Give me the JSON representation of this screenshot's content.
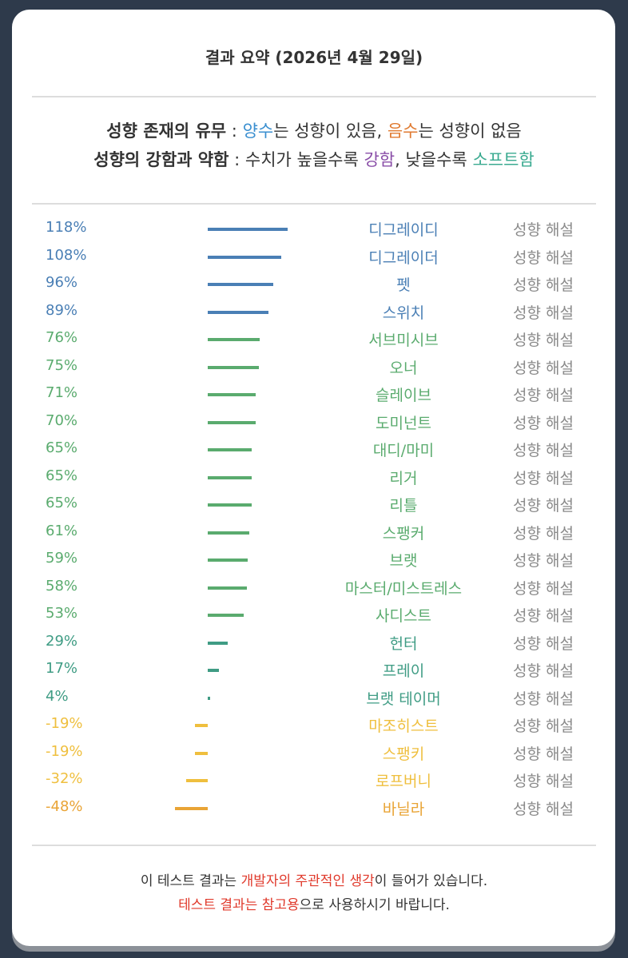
{
  "header": {
    "title": "결과 요약 (2026년 4월 29일)"
  },
  "legend": {
    "lines": [
      [
        {
          "text": "성향 존재의 유무",
          "bold": true
        },
        {
          "text": " : "
        },
        {
          "text": "양수",
          "color": "#3a8fd0"
        },
        {
          "text": "는 성향이 있음, "
        },
        {
          "text": "음수",
          "color": "#e07a30"
        },
        {
          "text": "는 성향이 없음"
        }
      ],
      [
        {
          "text": "성향의 강함과 약함",
          "bold": true
        },
        {
          "text": " : 수치가 높을수록 "
        },
        {
          "text": "강함",
          "color": "#8a4fa8"
        },
        {
          "text": ", 낮을수록 "
        },
        {
          "text": "소프트함",
          "color": "#3aaa90"
        }
      ]
    ]
  },
  "rows": [
    {
      "value": 118,
      "value_label": "118%",
      "name": "디그레이디",
      "link": "성향 해설",
      "color": "#4a7fb5"
    },
    {
      "value": 108,
      "value_label": "108%",
      "name": "디그레이더",
      "link": "성향 해설",
      "color": "#4a7fb5"
    },
    {
      "value": 96,
      "value_label": "96%",
      "name": "펫",
      "link": "성향 해설",
      "color": "#4a7fb5"
    },
    {
      "value": 89,
      "value_label": "89%",
      "name": "스위치",
      "link": "성향 해설",
      "color": "#4a7fb5"
    },
    {
      "value": 76,
      "value_label": "76%",
      "name": "서브미시브",
      "link": "성향 해설",
      "color": "#5aab6e"
    },
    {
      "value": 75,
      "value_label": "75%",
      "name": "오너",
      "link": "성향 해설",
      "color": "#5aab6e"
    },
    {
      "value": 71,
      "value_label": "71%",
      "name": "슬레이브",
      "link": "성향 해설",
      "color": "#5aab6e"
    },
    {
      "value": 70,
      "value_label": "70%",
      "name": "도미넌트",
      "link": "성향 해설",
      "color": "#5aab6e"
    },
    {
      "value": 65,
      "value_label": "65%",
      "name": "대디/마미",
      "link": "성향 해설",
      "color": "#5aab6e"
    },
    {
      "value": 65,
      "value_label": "65%",
      "name": "리거",
      "link": "성향 해설",
      "color": "#5aab6e"
    },
    {
      "value": 65,
      "value_label": "65%",
      "name": "리틀",
      "link": "성향 해설",
      "color": "#5aab6e"
    },
    {
      "value": 61,
      "value_label": "61%",
      "name": "스팽커",
      "link": "성향 해설",
      "color": "#5aab6e"
    },
    {
      "value": 59,
      "value_label": "59%",
      "name": "브랫",
      "link": "성향 해설",
      "color": "#5aab6e"
    },
    {
      "value": 58,
      "value_label": "58%",
      "name": "마스터/미스트레스",
      "link": "성향 해설",
      "color": "#5aab6e"
    },
    {
      "value": 53,
      "value_label": "53%",
      "name": "사디스트",
      "link": "성향 해설",
      "color": "#5aab6e"
    },
    {
      "value": 29,
      "value_label": "29%",
      "name": "헌터",
      "link": "성향 해설",
      "color": "#3f9c84"
    },
    {
      "value": 17,
      "value_label": "17%",
      "name": "프레이",
      "link": "성향 해설",
      "color": "#3f9c84"
    },
    {
      "value": 4,
      "value_label": "4%",
      "name": "브랫 테이머",
      "link": "성향 해설",
      "color": "#3f9c84"
    },
    {
      "value": -19,
      "value_label": "-19%",
      "name": "마조히스트",
      "link": "성향 해설",
      "color": "#efbf3e"
    },
    {
      "value": -19,
      "value_label": "-19%",
      "name": "스팽키",
      "link": "성향 해설",
      "color": "#efbf3e"
    },
    {
      "value": -32,
      "value_label": "-32%",
      "name": "로프버니",
      "link": "성향 해설",
      "color": "#efbf3e"
    },
    {
      "value": -48,
      "value_label": "-48%",
      "name": "바닐라",
      "link": "성향 해설",
      "color": "#e9a436"
    }
  ],
  "footer": {
    "lines": [
      [
        {
          "text": "이 테스트 결과는 "
        },
        {
          "text": "개발자의 주관적인 생각",
          "color": "#e0392b"
        },
        {
          "text": "이 들어가 있습니다."
        }
      ],
      [
        {
          "text": "테스트 결과는 참고용",
          "color": "#e0392b"
        },
        {
          "text": "으로 사용하시기 바랍니다."
        }
      ]
    ]
  }
}
